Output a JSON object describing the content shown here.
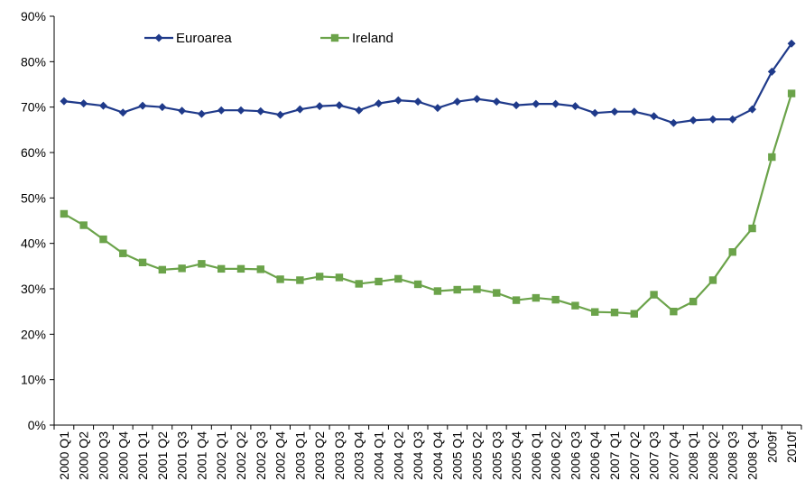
{
  "chart_data": {
    "type": "line",
    "title": "",
    "xlabel": "",
    "ylabel": "",
    "ylim": [
      0,
      90
    ],
    "y_ticks": [
      "0%",
      "10%",
      "20%",
      "30%",
      "40%",
      "50%",
      "60%",
      "70%",
      "80%",
      "90%"
    ],
    "grid": false,
    "legend_position": "top-left",
    "categories": [
      "2000 Q1",
      "2000 Q2",
      "2000 Q3",
      "2000 Q4",
      "2001 Q1",
      "2001 Q2",
      "2001 Q3",
      "2001 Q4",
      "2002 Q1",
      "2002 Q2",
      "2002 Q3",
      "2002 Q4",
      "2003 Q1",
      "2003 Q2",
      "2003 Q3",
      "2003 Q4",
      "2004 Q1",
      "2004 Q2",
      "2004 Q3",
      "2004 Q4",
      "2005 Q1",
      "2005 Q2",
      "2005 Q3",
      "2005 Q4",
      "2006 Q1",
      "2006 Q2",
      "2006 Q3",
      "2006 Q4",
      "2007 Q1",
      "2007 Q2",
      "2007 Q3",
      "2007 Q4",
      "2008 Q1",
      "2008 Q2",
      "2008 Q3",
      "2008 Q4",
      "2009f",
      "2010f"
    ],
    "series": [
      {
        "name": "Euroarea",
        "color": "#1F3A8A",
        "marker": "diamond",
        "values": [
          71.3,
          70.8,
          70.3,
          68.8,
          70.3,
          70.0,
          69.2,
          68.5,
          69.3,
          69.3,
          69.1,
          68.3,
          69.5,
          70.2,
          70.4,
          69.3,
          70.8,
          71.5,
          71.2,
          69.8,
          71.2,
          71.8,
          71.2,
          70.4,
          70.7,
          70.7,
          70.2,
          68.7,
          69.0,
          69.0,
          68.0,
          66.5,
          67.1,
          67.3,
          67.3,
          69.5,
          77.8,
          84.0
        ]
      },
      {
        "name": "Ireland",
        "color": "#6BA34A",
        "marker": "square",
        "values": [
          46.5,
          44.0,
          40.9,
          37.8,
          35.8,
          34.2,
          34.5,
          35.5,
          34.4,
          34.4,
          34.3,
          32.1,
          31.9,
          32.7,
          32.5,
          31.1,
          31.6,
          32.2,
          31.0,
          29.5,
          29.8,
          29.9,
          29.1,
          27.5,
          28.0,
          27.6,
          26.3,
          24.9,
          24.8,
          24.5,
          28.7,
          25.0,
          27.2,
          31.9,
          38.1,
          43.3,
          59.0,
          73.0
        ]
      }
    ]
  }
}
